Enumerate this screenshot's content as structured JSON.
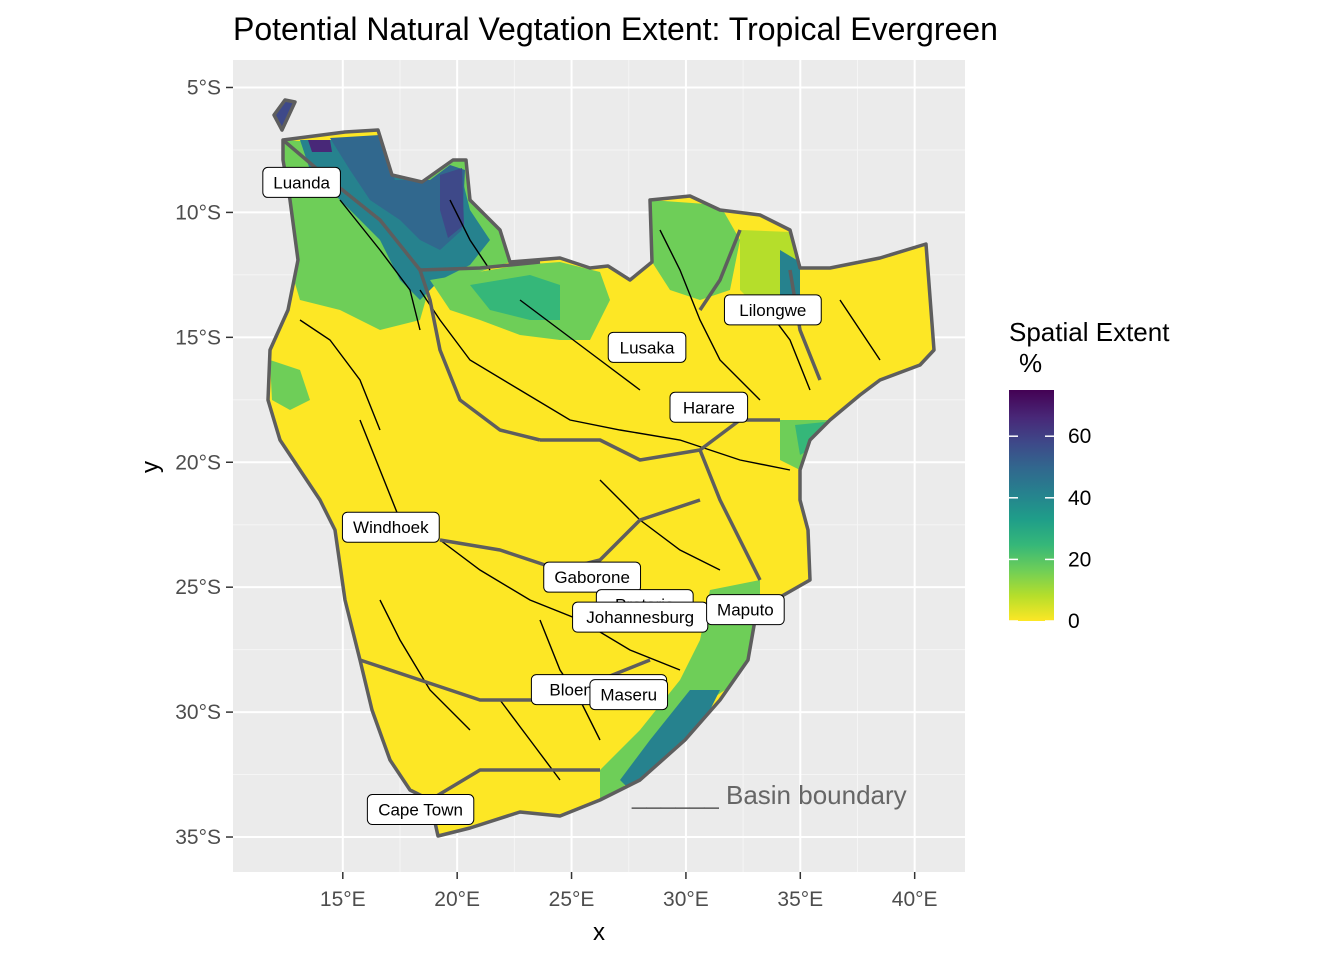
{
  "chart_data": {
    "type": "map",
    "title": "Potential Natural Vegtation Extent: Tropical Evergreen",
    "xlabel": "x",
    "ylabel": "y",
    "x_ticks": [
      "15°E",
      "20°E",
      "25°E",
      "30°E",
      "35°E",
      "40°E"
    ],
    "x_tick_values": [
      15,
      20,
      25,
      30,
      35,
      40
    ],
    "y_ticks": [
      "5°S",
      "10°S",
      "15°S",
      "20°S",
      "25°S",
      "30°S",
      "35°S"
    ],
    "y_tick_values": [
      -5,
      -10,
      -15,
      -20,
      -25,
      -30,
      -35
    ],
    "xlim": [
      10.2,
      42.2
    ],
    "ylim": [
      -36.4,
      -3.9
    ],
    "grid": true,
    "legend": {
      "title_line1": "Spatial Extent",
      "title_line2": "%",
      "placement": "right",
      "ticks": [
        "0",
        "20",
        "40",
        "60"
      ],
      "tick_values": [
        0,
        20,
        40,
        60
      ],
      "range": [
        0,
        75
      ],
      "palette": [
        "#fde725",
        "#b5de2b",
        "#6ece58",
        "#35b779",
        "#1f9e89",
        "#26828e",
        "#31688e",
        "#3e4989",
        "#482878",
        "#440154"
      ]
    },
    "annotation": "______ Basin boundary",
    "cities": [
      {
        "name": "Luanda",
        "lon": 13.2,
        "lat": -8.8
      },
      {
        "name": "Lilongwe",
        "lon": 33.8,
        "lat": -13.9
      },
      {
        "name": "Lusaka",
        "lon": 28.3,
        "lat": -15.4
      },
      {
        "name": "Harare",
        "lon": 31.0,
        "lat": -17.8
      },
      {
        "name": "Windhoek",
        "lon": 17.1,
        "lat": -22.6
      },
      {
        "name": "Gaborone",
        "lon": 25.9,
        "lat": -24.6
      },
      {
        "name": "Pretoria",
        "lon": 28.2,
        "lat": -25.7
      },
      {
        "name": "Johannesburg",
        "lon": 28.0,
        "lat": -26.2
      },
      {
        "name": "Maputo",
        "lon": 32.6,
        "lat": -25.9
      },
      {
        "name": "Bloemfontein",
        "lon": 26.2,
        "lat": -29.1
      },
      {
        "name": "Maseru",
        "lon": 27.5,
        "lat": -29.3
      },
      {
        "name": "Cape Town",
        "lon": 18.4,
        "lat": -33.9
      }
    ]
  }
}
